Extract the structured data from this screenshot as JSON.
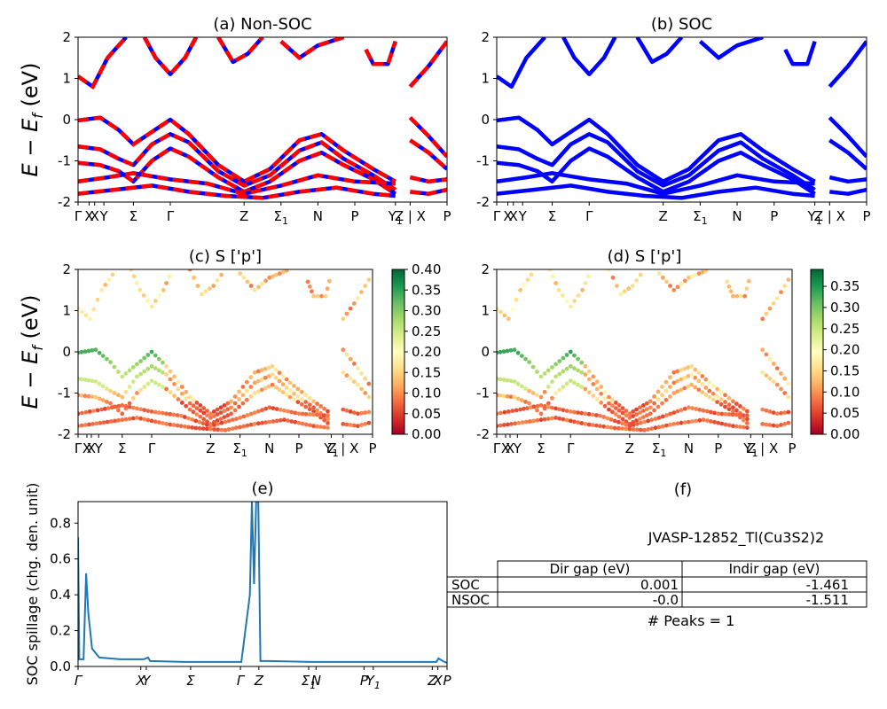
{
  "figure_title": "",
  "colors": {
    "nonsoc_band": "#ff0000",
    "soc_band": "#0000ff",
    "spillage_line": "#1f77b4",
    "cmap": "RdYlGn"
  },
  "chart_data": [
    {
      "id": "a",
      "type": "line",
      "title": "(a) Non-SOC",
      "ylabel": "E − E_f (eV)",
      "ylim": [
        -2,
        2
      ],
      "yticks": [
        -2,
        -1,
        0,
        1,
        2
      ],
      "xticks": [
        "Γ",
        "X",
        "X",
        "Y",
        "Σ",
        "Γ",
        "Z",
        "Σ1",
        "N",
        "P",
        "Y1",
        "Z | X",
        "P"
      ],
      "note": "red bands dashed over blue",
      "series": [
        {
          "values": [
            [
              0,
              1.05
            ],
            [
              0.5,
              0.75
            ],
            [
              1.2,
              1.2
            ],
            [
              2.5,
              2.0
            ]
          ]
        },
        {
          "values": [
            [
              0,
              -0.02
            ],
            [
              1.0,
              0.02
            ],
            [
              2.0,
              -0.2
            ],
            [
              3.0,
              -0.55
            ],
            [
              4.0,
              -0.05
            ],
            [
              5.0,
              0.0
            ],
            [
              6.0,
              -0.5
            ],
            [
              7.0,
              -1.3
            ],
            [
              8.0,
              -1.55
            ],
            [
              9.0,
              -1.35
            ],
            [
              10.0,
              -0.6
            ],
            [
              11.0,
              -0.4
            ],
            [
              12.0,
              -0.8
            ],
            [
              13.0,
              -1.1
            ]
          ]
        },
        {
          "values": [
            [
              0,
              -0.65
            ],
            [
              1.0,
              -0.75
            ],
            [
              2.0,
              -0.9
            ],
            [
              3.0,
              -1.1
            ],
            [
              4.0,
              -0.45
            ],
            [
              5.0,
              -0.4
            ],
            [
              6.0,
              -0.7
            ],
            [
              7.0,
              -1.4
            ],
            [
              8.0,
              -1.7
            ],
            [
              9.0,
              -1.5
            ],
            [
              10.0,
              -0.9
            ],
            [
              11.0,
              -0.6
            ],
            [
              12.0,
              -1.0
            ],
            [
              13.0,
              -1.3
            ]
          ]
        }
      ]
    },
    {
      "id": "b",
      "type": "line",
      "title": "(b) SOC",
      "ylim": [
        -2,
        2
      ],
      "yticks": [
        -2,
        -1,
        0,
        1,
        2
      ],
      "xticks": [
        "Γ",
        "X",
        "X",
        "Y",
        "Σ",
        "Γ",
        "Z",
        "Σ1",
        "N",
        "P",
        "Y1",
        "Z | X",
        "P"
      ]
    },
    {
      "id": "c",
      "type": "scatter",
      "title": "(c)  S ['p']",
      "ylabel": "E − E_f (eV)",
      "ylim": [
        -2,
        2
      ],
      "yticks": [
        -2,
        -1,
        0,
        1,
        2
      ],
      "xticks": [
        "Γ",
        "X",
        "X",
        "Y",
        "Σ",
        "Γ",
        "Z",
        "Σ1",
        "N",
        "P",
        "Y1",
        "Z | X",
        "P"
      ],
      "colorbar": {
        "min": 0.0,
        "max": 0.4,
        "ticks": [
          "0.00",
          "0.05",
          "0.10",
          "0.15",
          "0.20",
          "0.25",
          "0.30",
          "0.35",
          "0.40"
        ]
      }
    },
    {
      "id": "d",
      "type": "scatter",
      "title": "(d) S ['p']",
      "ylim": [
        -2,
        2
      ],
      "yticks": [
        -2,
        -1,
        0,
        1,
        2
      ],
      "xticks": [
        "Γ",
        "X",
        "X",
        "Y",
        "Σ",
        "Γ",
        "Z",
        "Σ1",
        "N",
        "P",
        "Y1",
        "Z | X",
        "P"
      ],
      "colorbar": {
        "min": 0.0,
        "max": 0.39,
        "ticks": [
          "0.00",
          "0.05",
          "0.10",
          "0.15",
          "0.20",
          "0.25",
          "0.30",
          "0.35"
        ]
      }
    },
    {
      "id": "e",
      "type": "line",
      "title": "(e)",
      "ylabel": "SOC spillage (chg. den. unit)",
      "ylim": [
        0,
        0.92
      ],
      "yticks": [
        "0.0",
        "0.2",
        "0.4",
        "0.6",
        "0.8"
      ],
      "xticks": [
        "Γ",
        "X",
        "Y",
        "Σ",
        "Γ",
        "Z",
        "Σ1",
        "N",
        "P",
        "Y1",
        "Z",
        "X",
        "P"
      ],
      "series": [
        {
          "values": [
            [
              0,
              0.72
            ],
            [
              0.3,
              0.04
            ],
            [
              1.3,
              0.04
            ],
            [
              1.9,
              0.52
            ],
            [
              2.4,
              0.3
            ],
            [
              3.3,
              0.1
            ],
            [
              5.0,
              0.05
            ],
            [
              10.0,
              0.04
            ],
            [
              15.5,
              0.04
            ],
            [
              16.5,
              0.05
            ],
            [
              17.0,
              0.03
            ],
            [
              25.0,
              0.025
            ],
            [
              35.0,
              0.025
            ],
            [
              38.5,
              0.025
            ],
            [
              40.5,
              0.4
            ],
            [
              41.0,
              0.92
            ],
            [
              41.5,
              0.46
            ],
            [
              42.0,
              0.92
            ],
            [
              42.5,
              0.92
            ],
            [
              43.0,
              0.03
            ],
            [
              45.0,
              0.03
            ],
            [
              55.0,
              0.025
            ],
            [
              60.0,
              0.025
            ],
            [
              66.0,
              0.025
            ],
            [
              75.0,
              0.025
            ],
            [
              84.5,
              0.025
            ],
            [
              85.0,
              0.045
            ],
            [
              86.0,
              0.03
            ],
            [
              87.0,
              0.02
            ]
          ]
        }
      ]
    },
    {
      "id": "f",
      "type": "table",
      "title": "(f)",
      "subtitle": "JVASP-12852_Tl(Cu3S2)2",
      "columns": [
        "Dir gap (eV)",
        "Indir gap (eV)"
      ],
      "rows": [
        {
          "label": "SOC",
          "values": [
            "0.001",
            "-1.461"
          ]
        },
        {
          "label": "NSOC",
          "values": [
            "-0.0",
            "-1.511"
          ]
        }
      ],
      "footer": "# Peaks = 1"
    }
  ]
}
